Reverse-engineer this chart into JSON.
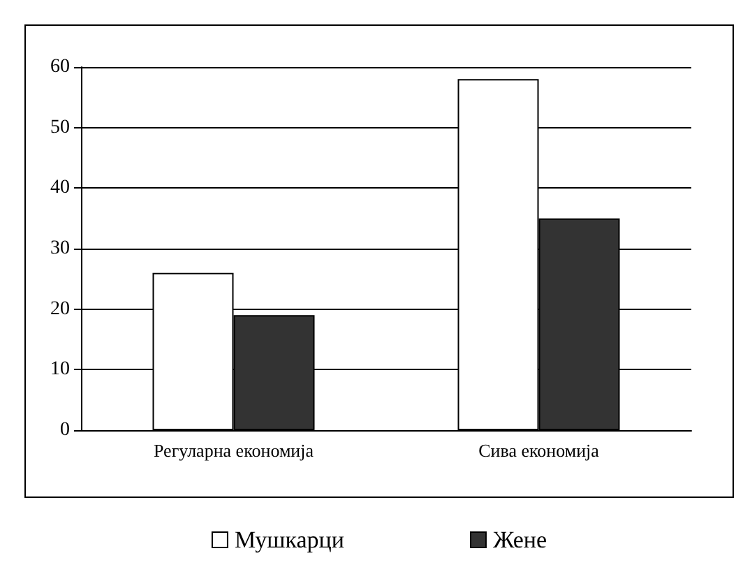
{
  "chart_data": {
    "type": "bar",
    "categories": [
      "Регуларна економија",
      "Сива економија"
    ],
    "series": [
      {
        "name": "Мушкарци",
        "color": "#ffffff",
        "values": [
          26,
          58
        ]
      },
      {
        "name": "Жене",
        "color": "#333333",
        "values": [
          19,
          35
        ]
      }
    ],
    "ylim": [
      0,
      60
    ],
    "yticks": [
      0,
      10,
      20,
      30,
      40,
      50,
      60
    ],
    "grid": "y",
    "legend": "bottom"
  }
}
